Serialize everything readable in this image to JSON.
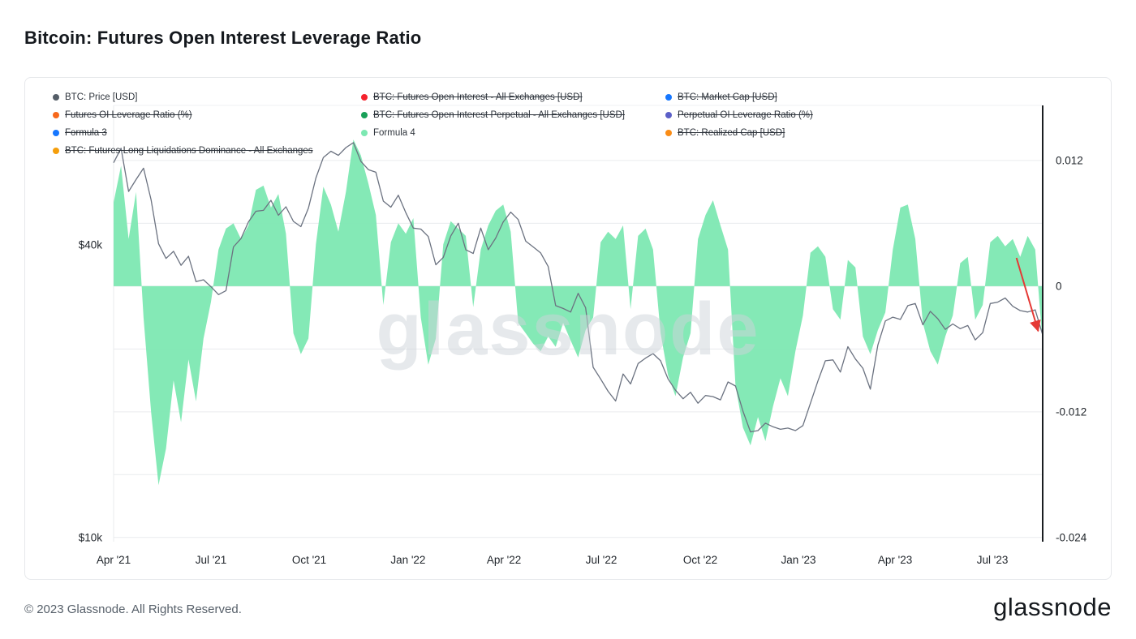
{
  "page": {
    "title": "Bitcoin: Futures Open Interest Leverage Ratio",
    "footer_copyright": "© 2023 Glassnode. All Rights Reserved.",
    "brand_logo": "glassnode",
    "watermark": "glassnode"
  },
  "legend": {
    "items": [
      {
        "label": "BTC: Price [USD]",
        "color": "#555e68",
        "struck": false,
        "col": 0,
        "row": 0
      },
      {
        "label": "BTC: Futures Open Interest - All Exchanges [USD]",
        "color": "#f5222d",
        "struck": true,
        "col": 1,
        "row": 0
      },
      {
        "label": "BTC: Market Cap [USD]",
        "color": "#1677ff",
        "struck": true,
        "col": 2,
        "row": 0
      },
      {
        "label": "Futures OI Leverage Ratio (%)",
        "color": "#f7681c",
        "struck": true,
        "col": 0,
        "row": 1
      },
      {
        "label": "BTC: Futures Open Interest Perpetual - All Exchanges [USD]",
        "color": "#18a058",
        "struck": true,
        "col": 1,
        "row": 1
      },
      {
        "label": "Perpetual OI Leverage Ratio (%)",
        "color": "#5b5fc7",
        "struck": true,
        "col": 2,
        "row": 1
      },
      {
        "label": "Formula 3",
        "color": "#1677ff",
        "struck": true,
        "col": 0,
        "row": 2
      },
      {
        "label": "Formula 4",
        "color": "#7de8b2",
        "struck": false,
        "col": 1,
        "row": 2
      },
      {
        "label": "BTC: Realized Cap [USD]",
        "color": "#fa8c16",
        "struck": true,
        "col": 2,
        "row": 2
      },
      {
        "label": "BTC: Futures Long Liquidations Dominance - All Exchanges",
        "color": "#f59e0b",
        "struck": true,
        "col": 0,
        "row": 3
      }
    ]
  },
  "chart_data": {
    "type": "line+area",
    "title": "Bitcoin: Futures Open Interest Leverage Ratio",
    "x_unit": "weekly points, Apr 2021 - Aug 2023",
    "x_ticks": [
      {
        "label": "Apr '21",
        "i": 0
      },
      {
        "label": "Jul '21",
        "i": 13
      },
      {
        "label": "Oct '21",
        "i": 26.1
      },
      {
        "label": "Jan '22",
        "i": 39.3
      },
      {
        "label": "Apr '22",
        "i": 52.1
      },
      {
        "label": "Jul '22",
        "i": 65.1
      },
      {
        "label": "Oct '22",
        "i": 78.3
      },
      {
        "label": "Jan '23",
        "i": 91.4
      },
      {
        "label": "Apr '23",
        "i": 104.3
      },
      {
        "label": "Jul '23",
        "i": 117.3
      }
    ],
    "left_axis": {
      "type": "log",
      "min": 9810,
      "max": 77400,
      "ticks": [
        {
          "label": "$40k",
          "value": 40000
        },
        {
          "label": "$10k",
          "value": 10000
        }
      ]
    },
    "right_axis": {
      "type": "linear",
      "min": -0.0244,
      "max": 0.01726,
      "ticks": [
        {
          "label": "0.012",
          "value": 0.012
        },
        {
          "label": "0",
          "value": 0
        },
        {
          "label": "-0.012",
          "value": -0.012
        },
        {
          "label": "-0.024",
          "value": -0.024
        }
      ],
      "grid_values": [
        0.012,
        0.006,
        0,
        -0.006,
        -0.012,
        -0.018,
        -0.024
      ]
    },
    "series": [
      {
        "name": "BTC: Price [USD]",
        "type": "line",
        "axis": "left",
        "color": "#6b7280",
        "values": [
          59000,
          63200,
          51500,
          54500,
          57500,
          49500,
          40200,
          37500,
          38800,
          36300,
          37900,
          33600,
          33900,
          32800,
          31600,
          32200,
          39600,
          41200,
          44600,
          46900,
          47100,
          49400,
          46000,
          47900,
          44700,
          43600,
          47600,
          54900,
          60500,
          62300,
          61100,
          63400,
          64900,
          59400,
          57100,
          56400,
          49200,
          47800,
          50600,
          46600,
          43300,
          43100,
          41600,
          36400,
          37700,
          41700,
          44300,
          39100,
          38400,
          43300,
          39100,
          41300,
          44600,
          46700,
          45100,
          40700,
          39600,
          38500,
          36100,
          30000,
          29600,
          29100,
          31800,
          29700,
          22400,
          21200,
          20000,
          19100,
          21700,
          20700,
          22800,
          23400,
          23900,
          23100,
          21200,
          20100,
          19300,
          19900,
          18900,
          19600,
          19500,
          19200,
          20900,
          20500,
          18200,
          16500,
          16600,
          17200,
          16900,
          16700,
          16800,
          16600,
          17000,
          18900,
          21000,
          23100,
          23200,
          21900,
          24700,
          23300,
          22300,
          20200,
          24900,
          27900,
          28400,
          28100,
          30000,
          30300,
          27400,
          29200,
          28200,
          26800,
          27500,
          26900,
          27300,
          25500,
          26400,
          30300,
          30500,
          31100,
          29900,
          29300,
          29100,
          29400,
          26100
        ]
      },
      {
        "name": "Formula 4",
        "type": "area",
        "axis": "right",
        "color": "#7de8b2",
        "values": [
          0.008,
          0.0115,
          0.0045,
          0.009,
          -0.003,
          -0.012,
          -0.019,
          -0.0155,
          -0.009,
          -0.013,
          -0.007,
          -0.011,
          -0.005,
          -0.0015,
          0.0035,
          0.0055,
          0.006,
          0.0045,
          0.0058,
          0.0092,
          0.0096,
          0.0075,
          0.0088,
          0.005,
          -0.0045,
          -0.0065,
          -0.005,
          0.004,
          0.0095,
          0.0078,
          0.0052,
          0.009,
          0.014,
          0.0125,
          0.0098,
          0.0068,
          -0.0018,
          0.0042,
          0.006,
          0.005,
          0.0065,
          -0.003,
          -0.0075,
          -0.005,
          0.004,
          0.0062,
          0.0055,
          0.0048,
          -0.002,
          0.0035,
          0.0058,
          0.0072,
          0.0078,
          0.0052,
          -0.0035,
          -0.0045,
          -0.0055,
          -0.0062,
          -0.0048,
          -0.0058,
          -0.0035,
          -0.0052,
          -0.0068,
          -0.0042,
          -0.003,
          0.0042,
          0.0052,
          0.0045,
          0.0058,
          -0.0022,
          0.0048,
          0.0055,
          0.0035,
          -0.0045,
          -0.0085,
          -0.0105,
          -0.0068,
          -0.0045,
          0.0045,
          0.0068,
          0.0082,
          0.0058,
          0.0035,
          -0.0095,
          -0.0135,
          -0.0152,
          -0.0125,
          -0.0148,
          -0.0115,
          -0.0088,
          -0.0105,
          -0.0062,
          -0.0028,
          0.0032,
          0.0038,
          0.0028,
          -0.0022,
          -0.0032,
          0.0025,
          0.0018,
          -0.0048,
          -0.0065,
          -0.0042,
          -0.0025,
          0.0035,
          0.0075,
          0.0078,
          0.0045,
          -0.0035,
          -0.0062,
          -0.0075,
          -0.0048,
          -0.0028,
          0.0022,
          0.0028,
          -0.0032,
          -0.0018,
          0.0042,
          0.0048,
          0.0038,
          0.0045,
          0.0028,
          0.0048,
          0.0035,
          -0.0055
        ]
      }
    ],
    "annotation_arrow": {
      "color": "#e53935",
      "from": {
        "i": 120.5,
        "v": 0.0027
      },
      "to": {
        "i": 123.4,
        "v": -0.0043
      }
    }
  }
}
